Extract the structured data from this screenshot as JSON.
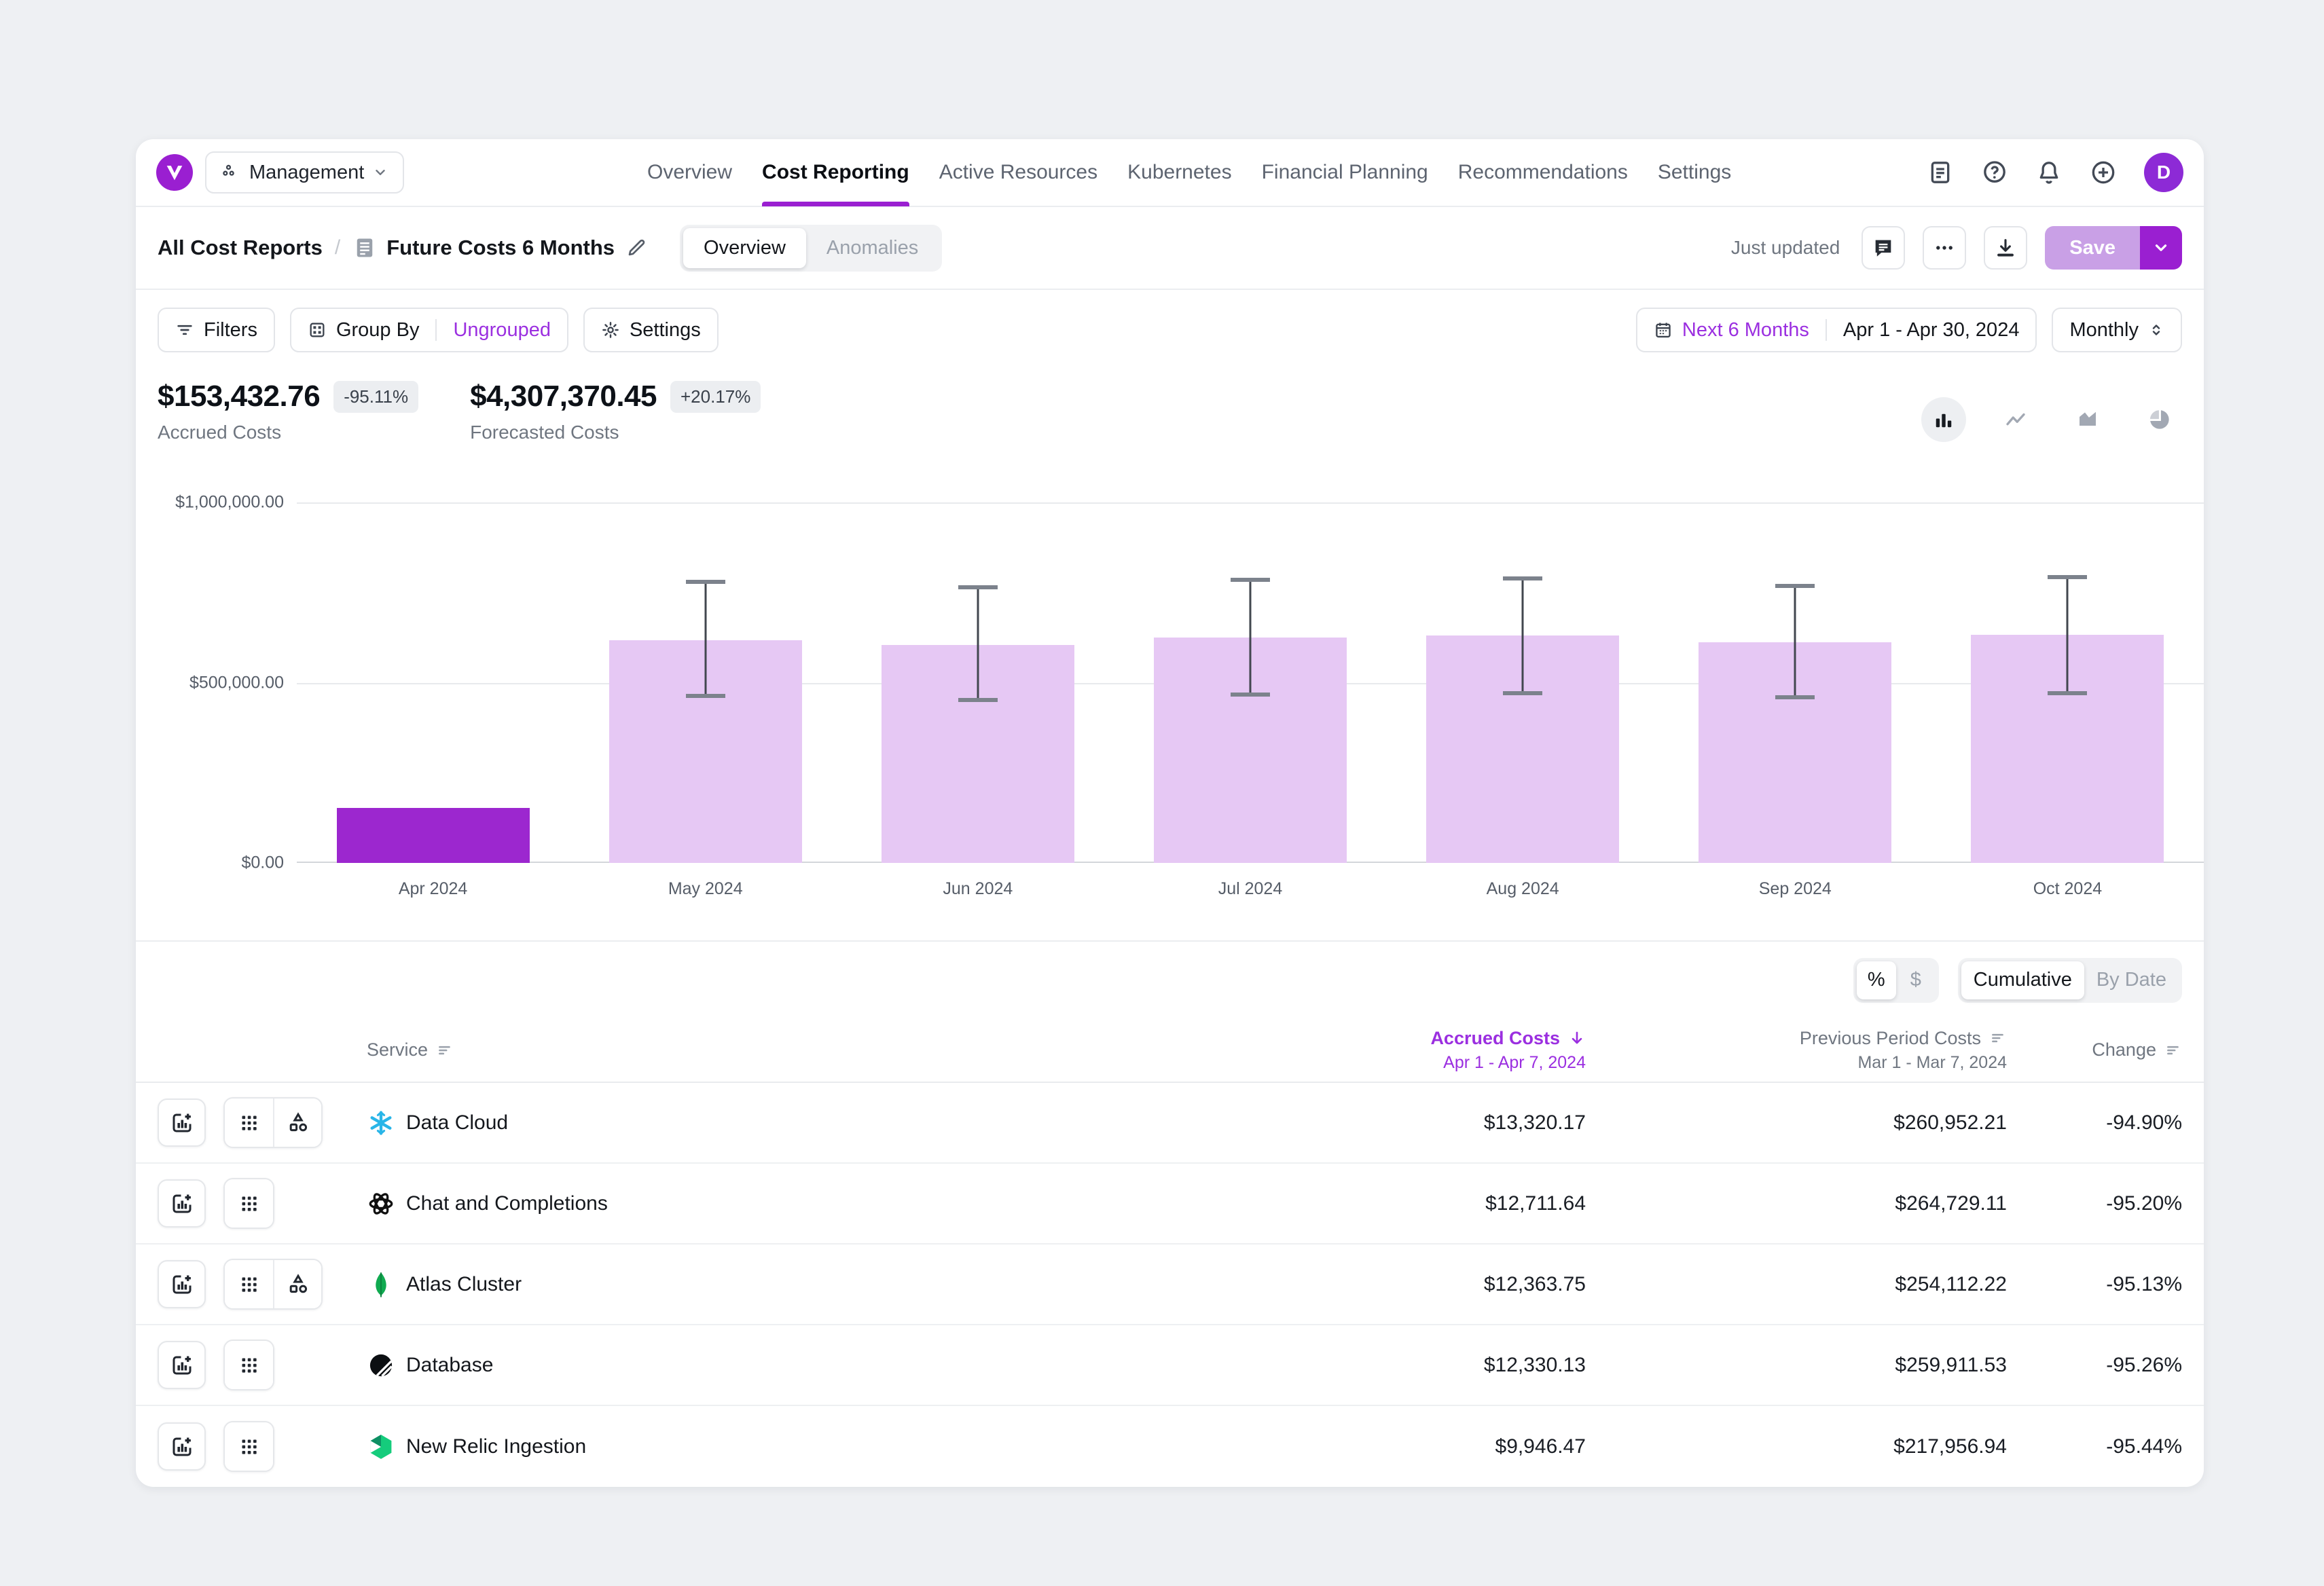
{
  "colors": {
    "accent": "#9a1fd1",
    "accent_text": "#9b2fe0",
    "save_muted": "#c9a0e6",
    "avatar": "#8d2ad6",
    "bar_actual": "#9c27cf",
    "bar_forecast": "#e6c8f4"
  },
  "topnav": {
    "workspace": {
      "label": "Management"
    },
    "tabs": [
      {
        "label": "Overview",
        "active": false
      },
      {
        "label": "Cost Reporting",
        "active": true
      },
      {
        "label": "Active Resources",
        "active": false
      },
      {
        "label": "Kubernetes",
        "active": false
      },
      {
        "label": "Financial Planning",
        "active": false
      },
      {
        "label": "Recommendations",
        "active": false
      },
      {
        "label": "Settings",
        "active": false
      }
    ],
    "avatar_initial": "D"
  },
  "header": {
    "breadcrumb_root": "All Cost Reports",
    "separator": "/",
    "report_title": "Future Costs 6 Months",
    "view_tabs": [
      {
        "label": "Overview",
        "active": true
      },
      {
        "label": "Anomalies",
        "active": false
      }
    ],
    "status": "Just updated",
    "save_label": "Save"
  },
  "toolbar": {
    "filters_label": "Filters",
    "group_by_label": "Group By",
    "group_by_value": "Ungrouped",
    "settings_label": "Settings",
    "date_preset": "Next 6 Months",
    "date_range": "Apr 1 - Apr 30, 2024",
    "granularity": "Monthly"
  },
  "metrics": [
    {
      "value": "$153,432.76",
      "change": "-95.11%",
      "label": "Accrued Costs"
    },
    {
      "value": "$4,307,370.45",
      "change": "+20.17%",
      "label": "Forecasted Costs"
    }
  ],
  "chart_data": {
    "type": "bar",
    "title": "Future Costs 6 Months — monthly accrued vs forecasted costs",
    "categories": [
      "Apr 2024",
      "May 2024",
      "Jun 2024",
      "Jul 2024",
      "Aug 2024",
      "Sep 2024",
      "Oct 2024"
    ],
    "series": [
      {
        "name": "Accrued Costs",
        "values": [
          153432.76,
          null,
          null,
          null,
          null,
          null,
          null
        ]
      },
      {
        "name": "Forecasted Costs",
        "values": [
          null,
          618000,
          604000,
          626000,
          631000,
          612000,
          633000
        ]
      }
    ],
    "error_bars": {
      "low": [
        null,
        464000,
        452000,
        468000,
        471000,
        459000,
        470000
      ],
      "high": [
        null,
        779000,
        764000,
        786000,
        790000,
        769000,
        792000
      ]
    },
    "ylim": [
      0,
      1000000
    ],
    "yticks": [
      "$1,000,000.00",
      "$500,000.00",
      "$0.00"
    ],
    "grid": true,
    "legend": "none",
    "xlabel": "",
    "ylabel": ""
  },
  "table": {
    "unit_toggle": {
      "options": [
        "%",
        "$"
      ],
      "active": "%"
    },
    "mode_toggle": {
      "options": [
        "Cumulative",
        "By Date"
      ],
      "active": "Cumulative"
    },
    "columns": {
      "service": {
        "label": "Service"
      },
      "accrued": {
        "label": "Accrued Costs",
        "sublabel": "Apr 1 - Apr 7, 2024",
        "sorted": "desc"
      },
      "previous": {
        "label": "Previous Period Costs",
        "sublabel": "Mar 1 - Mar 7, 2024"
      },
      "change": {
        "label": "Change"
      }
    },
    "rows": [
      {
        "service": "Data Cloud",
        "icon": "snowflake-logo",
        "actions": [
          "chart-add",
          "grid-dots",
          "shapes"
        ],
        "accrued": "$13,320.17",
        "previous": "$260,952.21",
        "change": "-94.90%"
      },
      {
        "service": "Chat and Completions",
        "icon": "openai-logo",
        "actions": [
          "chart-add",
          "grid-dots"
        ],
        "accrued": "$12,711.64",
        "previous": "$264,729.11",
        "change": "-95.20%"
      },
      {
        "service": "Atlas Cluster",
        "icon": "mongodb-logo",
        "actions": [
          "chart-add",
          "grid-dots",
          "shapes"
        ],
        "accrued": "$12,363.75",
        "previous": "$254,112.22",
        "change": "-95.13%"
      },
      {
        "service": "Database",
        "icon": "planetscale-logo",
        "actions": [
          "chart-add",
          "grid-dots"
        ],
        "accrued": "$12,330.13",
        "previous": "$259,911.53",
        "change": "-95.26%"
      },
      {
        "service": "New Relic Ingestion",
        "icon": "newrelic-logo",
        "actions": [
          "chart-add",
          "grid-dots"
        ],
        "accrued": "$9,946.47",
        "previous": "$217,956.94",
        "change": "-95.44%"
      }
    ]
  }
}
